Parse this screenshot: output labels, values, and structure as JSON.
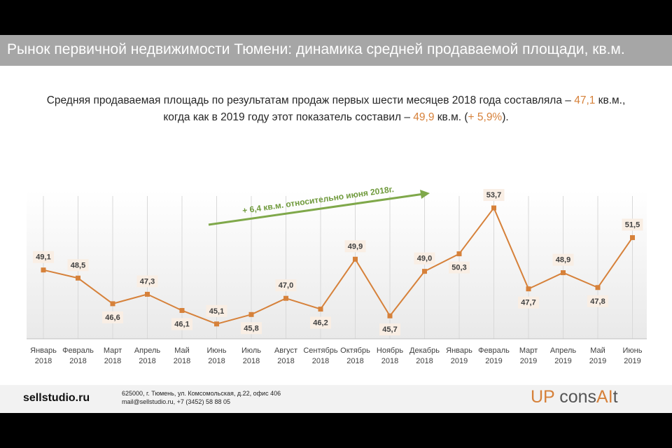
{
  "title": "Рынок первичной недвижимости Тюмени: динамика средней продаваемой площади, кв.м.",
  "summary": {
    "line1_text": "Средняя продаваемая площадь по результатам продаж первых шести месяцев 2018 года составляла – ",
    "line1_value": "47,1",
    "line1_unit": " кв.м.,",
    "line2_text": "когда как в 2019 году этот показатель составил – ",
    "line2_value": "49,9",
    "line2_unit": " кв.м. (",
    "line2_change": "+ 5,9%",
    "line2_end": ")."
  },
  "chart_data": {
    "type": "line",
    "title": "",
    "xlabel": "",
    "ylabel": "",
    "ylim": [
      44.0,
      55.0
    ],
    "grid": "vertical",
    "categories": [
      {
        "month": "Январь",
        "year": "2018"
      },
      {
        "month": "Февраль",
        "year": "2018"
      },
      {
        "month": "Март",
        "year": "2018"
      },
      {
        "month": "Апрель",
        "year": "2018"
      },
      {
        "month": "Май",
        "year": "2018"
      },
      {
        "month": "Июнь",
        "year": "2018"
      },
      {
        "month": "Июль",
        "year": "2018"
      },
      {
        "month": "Август",
        "year": "2018"
      },
      {
        "month": "Сентябрь",
        "year": "2018"
      },
      {
        "month": "Октябрь",
        "year": "2018"
      },
      {
        "month": "Ноябрь",
        "year": "2018"
      },
      {
        "month": "Декабрь",
        "year": "2018"
      },
      {
        "month": "Январь",
        "year": "2019"
      },
      {
        "month": "Февраль",
        "year": "2019"
      },
      {
        "month": "Март",
        "year": "2019"
      },
      {
        "month": "Апрель",
        "year": "2019"
      },
      {
        "month": "Май",
        "year": "2019"
      },
      {
        "month": "Июнь",
        "year": "2019"
      }
    ],
    "series": [
      {
        "name": "Средняя продаваемая площадь, кв.м.",
        "values": [
          49.1,
          48.5,
          46.6,
          47.3,
          46.1,
          45.1,
          45.8,
          47.0,
          46.2,
          49.9,
          45.7,
          49.0,
          50.3,
          53.7,
          47.7,
          48.9,
          47.8,
          51.5
        ],
        "labels": [
          "49,1",
          "48,5",
          "46,6",
          "47,3",
          "46,1",
          "45,1",
          "45,8",
          "47,0",
          "46,2",
          "49,9",
          "45,7",
          "49,0",
          "50,3",
          "53,7",
          "47,7",
          "48,9",
          "47,8",
          "51,5"
        ],
        "label_position": [
          "above",
          "above",
          "below",
          "above",
          "below",
          "above",
          "below",
          "above",
          "below",
          "above",
          "below",
          "above",
          "below",
          "above",
          "below",
          "above",
          "below",
          "above"
        ]
      }
    ],
    "annotation": "+ 6,4 кв.м. относительно июня 2018г.",
    "colors": {
      "line": "#d6813a",
      "marker": "#d6813a",
      "label_bg": "#f9eee4",
      "arrow": "#7fa84a",
      "grid": "#d9d9d9"
    }
  },
  "footer": {
    "site": "sellstudio.ru",
    "address_line1": "625000, г. Тюмень, ул. Комсомольская, д.22, офис 406",
    "address_line2": "mail@sellstudio.ru, +7 (3452) 58 88 05",
    "logo_up": "UP",
    "logo_cons": " cons",
    "logo_ai": "AI",
    "logo_t": "t"
  }
}
